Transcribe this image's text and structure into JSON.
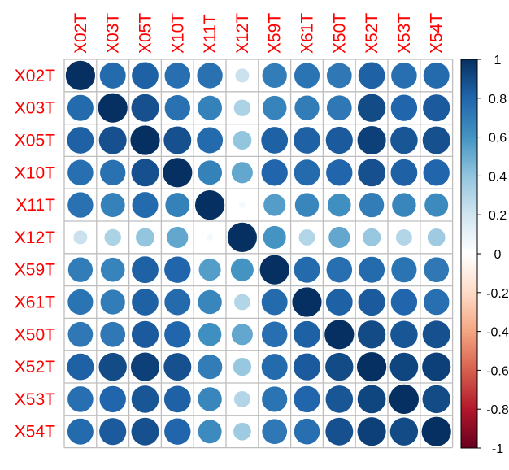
{
  "chart_data": {
    "type": "heatmap",
    "subtype": "correlation-circle-matrix",
    "title": "",
    "variables": [
      "X02T",
      "X03T",
      "X05T",
      "X10T",
      "X11T",
      "X12T",
      "X59T",
      "X61T",
      "X50T",
      "X52T",
      "X53T",
      "X54T"
    ],
    "label_color": "#ff0000",
    "matrix": [
      [
        1.0,
        0.78,
        0.82,
        0.76,
        0.75,
        0.22,
        0.7,
        0.74,
        0.72,
        0.82,
        0.76,
        0.78
      ],
      [
        0.78,
        1.0,
        0.88,
        0.75,
        0.68,
        0.32,
        0.67,
        0.7,
        0.72,
        0.9,
        0.8,
        0.84
      ],
      [
        0.82,
        0.88,
        1.0,
        0.88,
        0.78,
        0.4,
        0.82,
        0.82,
        0.84,
        0.94,
        0.86,
        0.88
      ],
      [
        0.76,
        0.75,
        0.88,
        1.0,
        0.68,
        0.52,
        0.8,
        0.78,
        0.8,
        0.88,
        0.82,
        0.8
      ],
      [
        0.75,
        0.68,
        0.78,
        0.68,
        1.0,
        0.05,
        0.56,
        0.66,
        0.62,
        0.7,
        0.66,
        0.64
      ],
      [
        0.22,
        0.32,
        0.4,
        0.52,
        0.05,
        1.0,
        0.6,
        0.3,
        0.52,
        0.38,
        0.3,
        0.36
      ],
      [
        0.7,
        0.67,
        0.82,
        0.8,
        0.56,
        0.6,
        1.0,
        0.78,
        0.76,
        0.78,
        0.74,
        0.72
      ],
      [
        0.74,
        0.7,
        0.82,
        0.78,
        0.66,
        0.3,
        0.78,
        1.0,
        0.82,
        0.84,
        0.8,
        0.76
      ],
      [
        0.72,
        0.72,
        0.84,
        0.8,
        0.62,
        0.52,
        0.76,
        0.82,
        1.0,
        0.9,
        0.86,
        0.88
      ],
      [
        0.82,
        0.9,
        0.94,
        0.88,
        0.7,
        0.38,
        0.78,
        0.84,
        0.9,
        1.0,
        0.92,
        0.94
      ],
      [
        0.76,
        0.8,
        0.86,
        0.82,
        0.66,
        0.3,
        0.74,
        0.8,
        0.86,
        0.92,
        1.0,
        0.9
      ],
      [
        0.78,
        0.84,
        0.88,
        0.8,
        0.64,
        0.36,
        0.72,
        0.76,
        0.88,
        0.94,
        0.9,
        1.0
      ]
    ],
    "color_scale": {
      "range": [
        -1,
        1
      ],
      "ticks": [
        1,
        0.8,
        0.6,
        0.4,
        0.2,
        0,
        -0.2,
        -0.4,
        -0.6,
        -0.8,
        -1
      ],
      "tick_labels": [
        "1",
        "0.8",
        "0.6",
        "0.4",
        "0.2",
        "0",
        "-0.2",
        "-0.4",
        "-0.6",
        "-0.8",
        "-1"
      ],
      "stops": [
        {
          "v": -1.0,
          "color": "#67001f"
        },
        {
          "v": -0.8,
          "color": "#b2182b"
        },
        {
          "v": -0.6,
          "color": "#d6604d"
        },
        {
          "v": -0.4,
          "color": "#f4a582"
        },
        {
          "v": -0.2,
          "color": "#fddbc7"
        },
        {
          "v": 0.0,
          "color": "#ffffff"
        },
        {
          "v": 0.2,
          "color": "#d1e5f0"
        },
        {
          "v": 0.4,
          "color": "#92c5de"
        },
        {
          "v": 0.6,
          "color": "#4393c3"
        },
        {
          "v": 0.8,
          "color": "#2166ac"
        },
        {
          "v": 1.0,
          "color": "#053061"
        }
      ]
    },
    "grid": true,
    "grid_color": "#bebebe",
    "legend_placement": "right"
  }
}
